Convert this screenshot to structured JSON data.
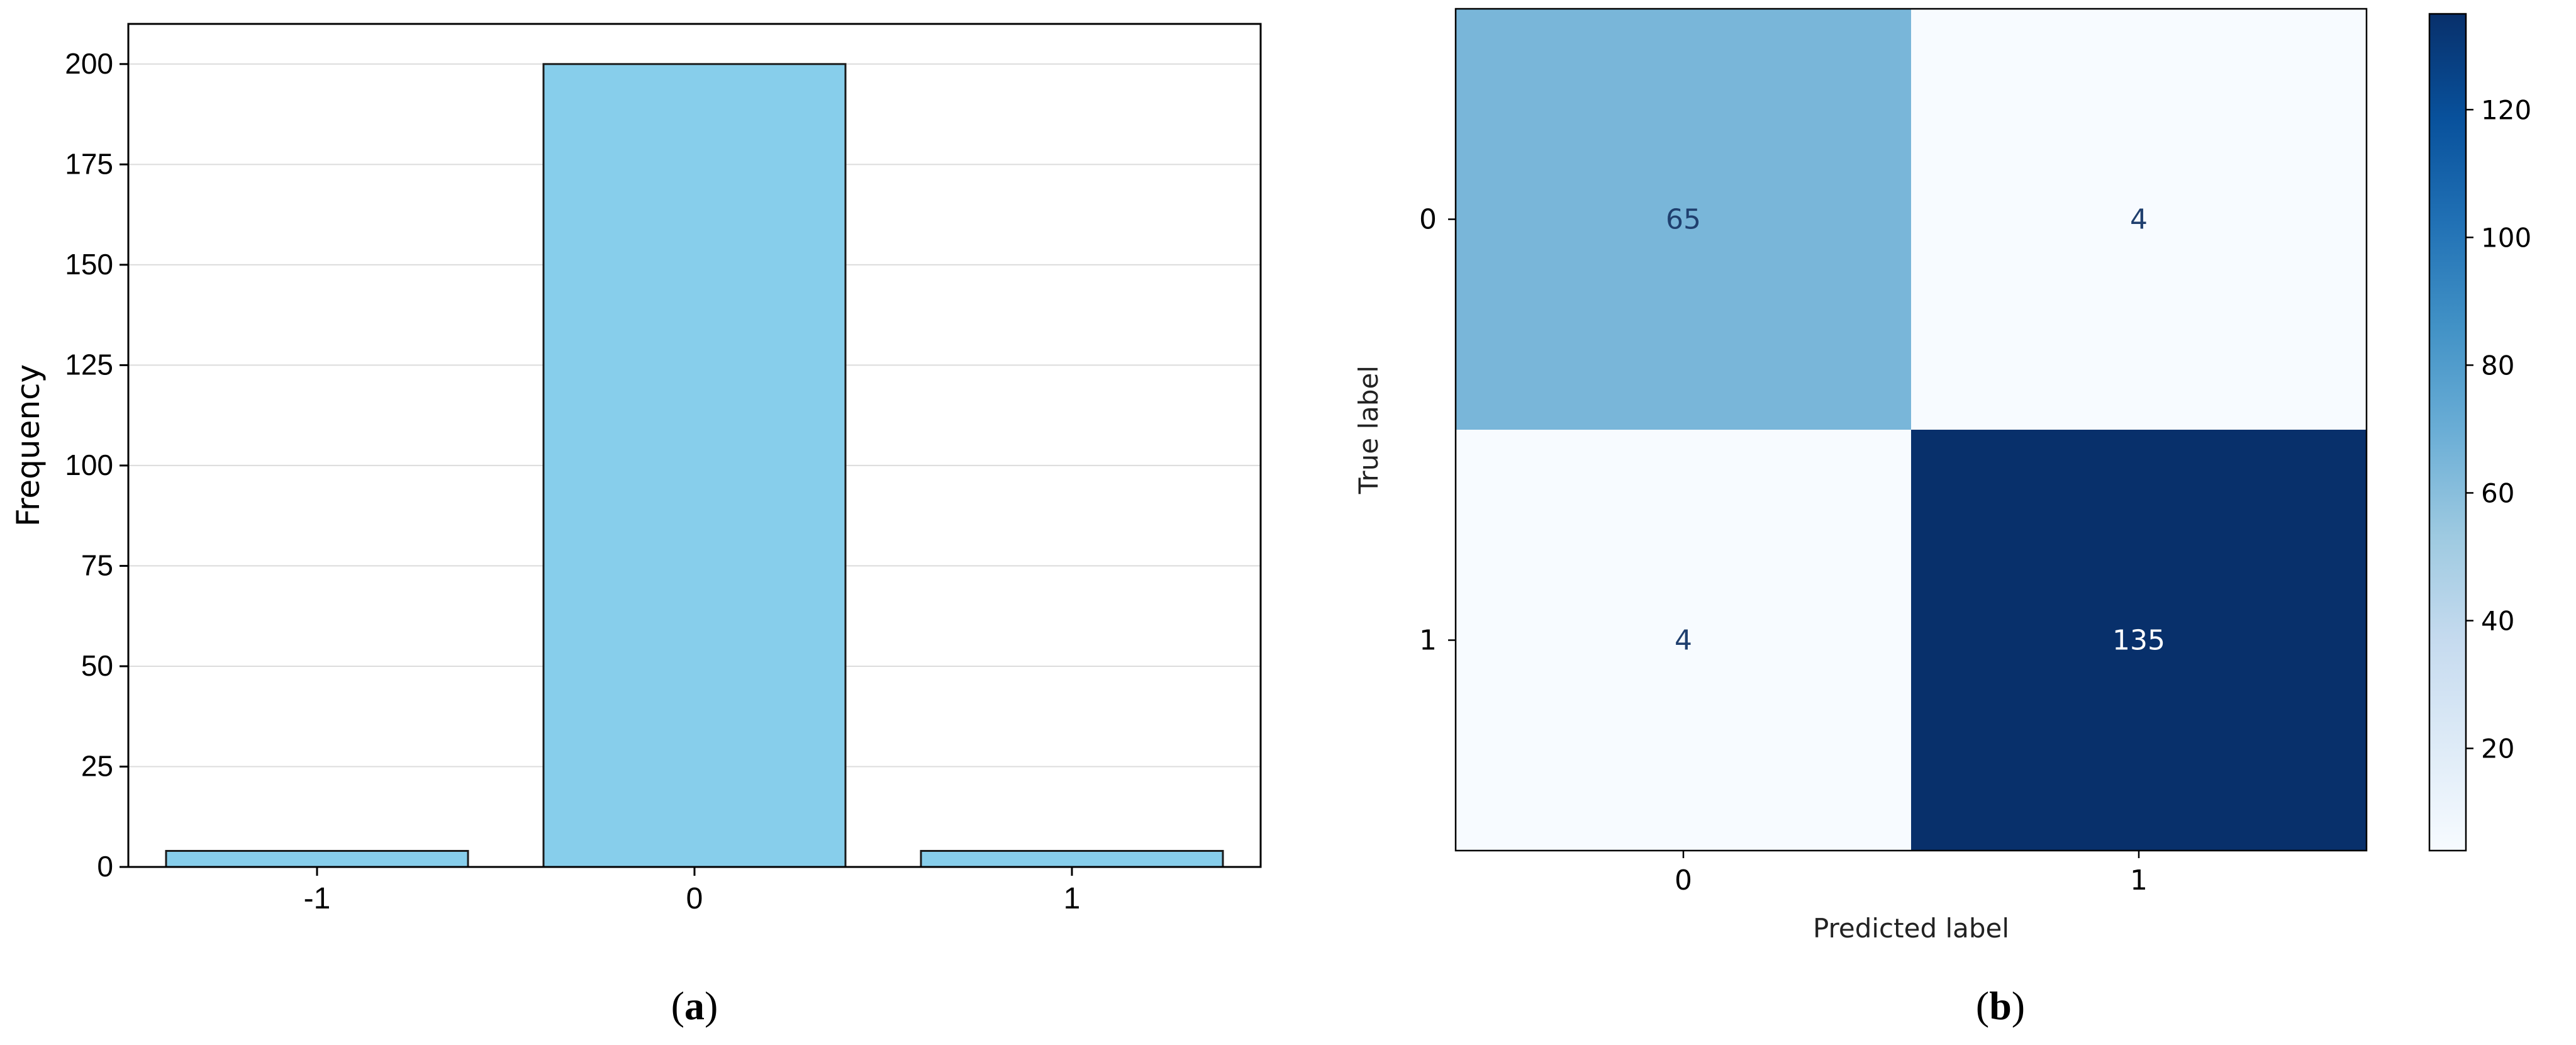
{
  "chart_data": [
    {
      "type": "bar",
      "caption": "a",
      "categories": [
        "-1",
        "0",
        "1"
      ],
      "values": [
        4,
        200,
        4
      ],
      "ylabel": "Frequency",
      "xlabel": "",
      "ylim": [
        0,
        210
      ],
      "yticks": [
        0,
        25,
        50,
        75,
        100,
        125,
        150,
        175,
        200
      ],
      "grid": "horizontal",
      "bar_color": "#87ceeb",
      "edge_color": "#1a1a1a"
    },
    {
      "type": "heatmap",
      "caption": "b",
      "rows": [
        "0",
        "1"
      ],
      "cols": [
        "0",
        "1"
      ],
      "values": [
        [
          65,
          4
        ],
        [
          4,
          135
        ]
      ],
      "xlabel": "Predicted label",
      "ylabel": "True label",
      "colorbar_range": [
        4,
        135
      ],
      "colorbar_ticks": [
        20,
        40,
        60,
        80,
        100,
        120
      ],
      "colormap": "Blues",
      "colormap_low": "#f7fbff",
      "colormap_high": "#08306b"
    }
  ]
}
